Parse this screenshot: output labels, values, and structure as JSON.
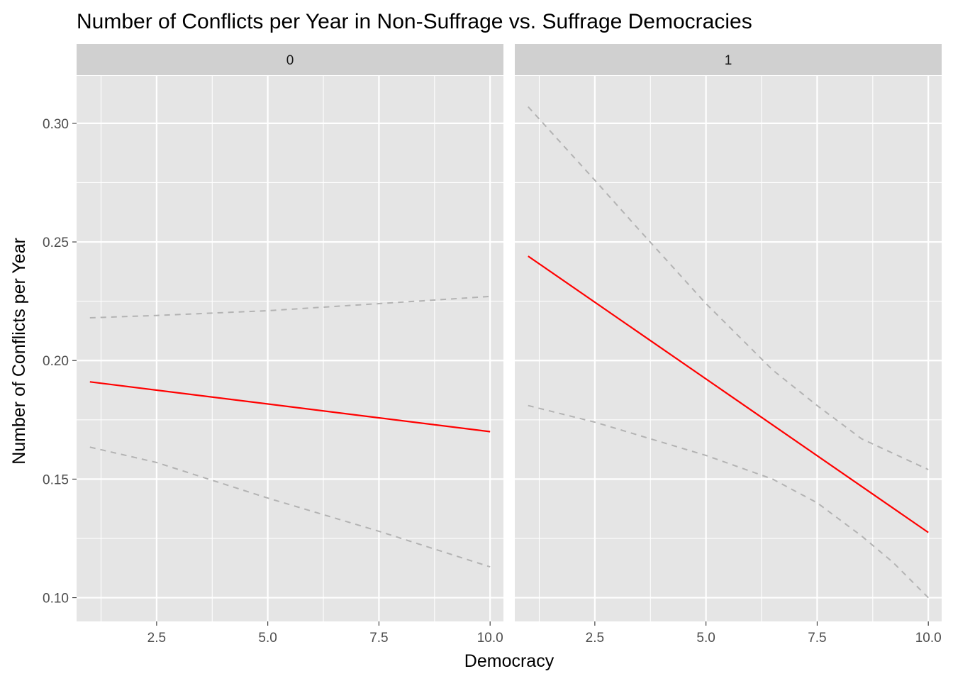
{
  "chart_data": {
    "type": "line",
    "title": "Number of Conflicts per Year in Non-Suffrage vs. Suffrage Democracies",
    "xlabel": "Democracy",
    "ylabel": "Number of Conflicts per Year",
    "xlim": [
      0.7,
      10.3
    ],
    "ylim": [
      0.09,
      0.32
    ],
    "x_ticks": [
      2.5,
      5.0,
      7.5,
      10.0
    ],
    "x_tick_labels": [
      "2.5",
      "5.0",
      "7.5",
      "10.0"
    ],
    "y_ticks": [
      0.1,
      0.15,
      0.2,
      0.25,
      0.3
    ],
    "y_tick_labels": [
      "0.10",
      "0.15",
      "0.20",
      "0.25",
      "0.30"
    ],
    "grid": true,
    "colors": {
      "panel_bg": "#e5e5e5",
      "strip_bg": "#d0d0d0",
      "grid": "#ffffff",
      "fit": "#ff0000",
      "ci": "#b3b3b3"
    },
    "panels": [
      {
        "strip_label": "0",
        "series": [
          {
            "role": "fit",
            "style": "solid",
            "x": [
              1,
              10
            ],
            "y": [
              0.191,
              0.17
            ]
          },
          {
            "role": "upper",
            "style": "dashed",
            "x": [
              1,
              2.5,
              5,
              7.5,
              10
            ],
            "y": [
              0.218,
              0.219,
              0.221,
              0.224,
              0.227
            ]
          },
          {
            "role": "lower",
            "style": "dashed",
            "x": [
              1,
              2.5,
              5,
              7.5,
              10
            ],
            "y": [
              0.1635,
              0.157,
              0.142,
              0.128,
              0.113
            ]
          }
        ]
      },
      {
        "strip_label": "1",
        "series": [
          {
            "role": "fit",
            "style": "solid",
            "x": [
              1,
              10
            ],
            "y": [
              0.244,
              0.1275
            ]
          },
          {
            "role": "upper",
            "style": "dashed",
            "x": [
              1,
              2.5,
              3.5,
              5,
              6.5,
              7.5,
              8.5,
              10
            ],
            "y": [
              0.307,
              0.276,
              0.255,
              0.224,
              0.196,
              0.181,
              0.167,
              0.154
            ]
          },
          {
            "role": "lower",
            "style": "dashed",
            "x": [
              1,
              2.5,
              5,
              6.5,
              7.5,
              8.5,
              9.2,
              10
            ],
            "y": [
              0.181,
              0.174,
              0.16,
              0.15,
              0.14,
              0.126,
              0.115,
              0.1
            ]
          }
        ]
      }
    ]
  }
}
